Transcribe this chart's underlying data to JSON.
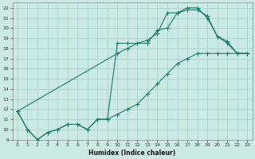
{
  "xlabel": "Humidex (Indice chaleur)",
  "bg_color": "#cceae4",
  "grid_color": "#aad0ca",
  "line_color": "#1a7a6a",
  "xlim": [
    -0.5,
    23.5
  ],
  "ylim": [
    9,
    22.5
  ],
  "xticks": [
    0,
    1,
    2,
    3,
    4,
    5,
    6,
    7,
    8,
    9,
    10,
    11,
    12,
    13,
    14,
    15,
    16,
    17,
    18,
    19,
    20,
    21,
    22,
    23
  ],
  "yticks": [
    9,
    10,
    11,
    12,
    13,
    14,
    15,
    16,
    17,
    18,
    19,
    20,
    21,
    22
  ],
  "line1_x": [
    0,
    1,
    2,
    3,
    4,
    5,
    6,
    7,
    8,
    9,
    10,
    11,
    12,
    13,
    14,
    15,
    16,
    17,
    18,
    19,
    20,
    21,
    22,
    23
  ],
  "line1_y": [
    11.8,
    10.0,
    9.0,
    9.7,
    10.0,
    10.5,
    10.5,
    10.0,
    11.0,
    11.0,
    18.5,
    18.5,
    18.5,
    18.5,
    19.8,
    20.0,
    21.5,
    21.8,
    21.8,
    21.2,
    19.2,
    18.7,
    17.5,
    17.5
  ],
  "line2_x": [
    0,
    1,
    2,
    3,
    4,
    5,
    6,
    7,
    8,
    9,
    10,
    11,
    12,
    13,
    14,
    15,
    16,
    17,
    18,
    19,
    20,
    21,
    22,
    23
  ],
  "line2_y": [
    11.8,
    10.0,
    9.0,
    9.7,
    10.0,
    10.5,
    10.5,
    10.0,
    11.0,
    11.0,
    11.5,
    12.0,
    12.5,
    13.5,
    14.5,
    15.5,
    16.5,
    17.0,
    17.5,
    17.5,
    17.5,
    17.5,
    17.5,
    17.5
  ],
  "line3_x": [
    0,
    10,
    11,
    12,
    13,
    14,
    15,
    16,
    17,
    18,
    19,
    20,
    21,
    22,
    23
  ],
  "line3_y": [
    11.8,
    17.5,
    18.0,
    18.5,
    18.8,
    19.5,
    21.5,
    21.5,
    22.0,
    22.0,
    21.0,
    19.2,
    18.5,
    17.5,
    17.5
  ]
}
